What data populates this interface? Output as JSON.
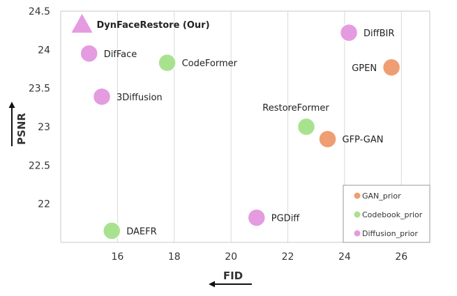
{
  "chart_data": {
    "type": "scatter",
    "xlabel": "FID",
    "ylabel": "PSNR",
    "xlim": [
      14,
      27
    ],
    "ylim": [
      21.5,
      24.5
    ],
    "xticks": [
      16,
      18,
      20,
      22,
      24,
      26
    ],
    "yticks": [
      22,
      22.5,
      23,
      23.5,
      24,
      24.5
    ],
    "grid": "vertical",
    "legend": {
      "placement": "bottom-right",
      "entries": [
        {
          "name": "GAN_prior",
          "color": "#ee9e72"
        },
        {
          "name": "Codebook_prior",
          "color": "#a9e28f"
        },
        {
          "name": "Diffusion_prior",
          "color": "#e59be0"
        }
      ]
    },
    "points": [
      {
        "label": "DynFaceRestore (Our)",
        "x": 14.75,
        "y": 24.33,
        "category": "Diffusion_prior",
        "marker": "triangle",
        "bold": true,
        "label_side": "right"
      },
      {
        "label": "DiffBIR",
        "x": 24.15,
        "y": 24.22,
        "category": "Diffusion_prior",
        "marker": "circle",
        "label_side": "right"
      },
      {
        "label": "DifFace",
        "x": 15.0,
        "y": 23.95,
        "category": "Diffusion_prior",
        "marker": "circle",
        "label_side": "right"
      },
      {
        "label": "CodeFormer",
        "x": 17.75,
        "y": 23.83,
        "category": "Codebook_prior",
        "marker": "circle",
        "label_side": "right"
      },
      {
        "label": "GPEN",
        "x": 25.65,
        "y": 23.77,
        "category": "GAN_prior",
        "marker": "circle",
        "label_side": "left"
      },
      {
        "label": "3Diffusion",
        "x": 15.45,
        "y": 23.39,
        "category": "Diffusion_prior",
        "marker": "circle",
        "label_side": "right"
      },
      {
        "label": "RestoreFormer",
        "x": 22.65,
        "y": 23.0,
        "category": "Codebook_prior",
        "marker": "circle",
        "label_side": "above"
      },
      {
        "label": "GFP-GAN",
        "x": 23.4,
        "y": 22.84,
        "category": "GAN_prior",
        "marker": "circle",
        "label_side": "right"
      },
      {
        "label": "PGDiff",
        "x": 20.9,
        "y": 21.82,
        "category": "Diffusion_prior",
        "marker": "circle",
        "label_side": "right"
      },
      {
        "label": "DAEFR",
        "x": 15.8,
        "y": 21.65,
        "category": "Codebook_prior",
        "marker": "circle",
        "label_side": "right"
      }
    ]
  }
}
